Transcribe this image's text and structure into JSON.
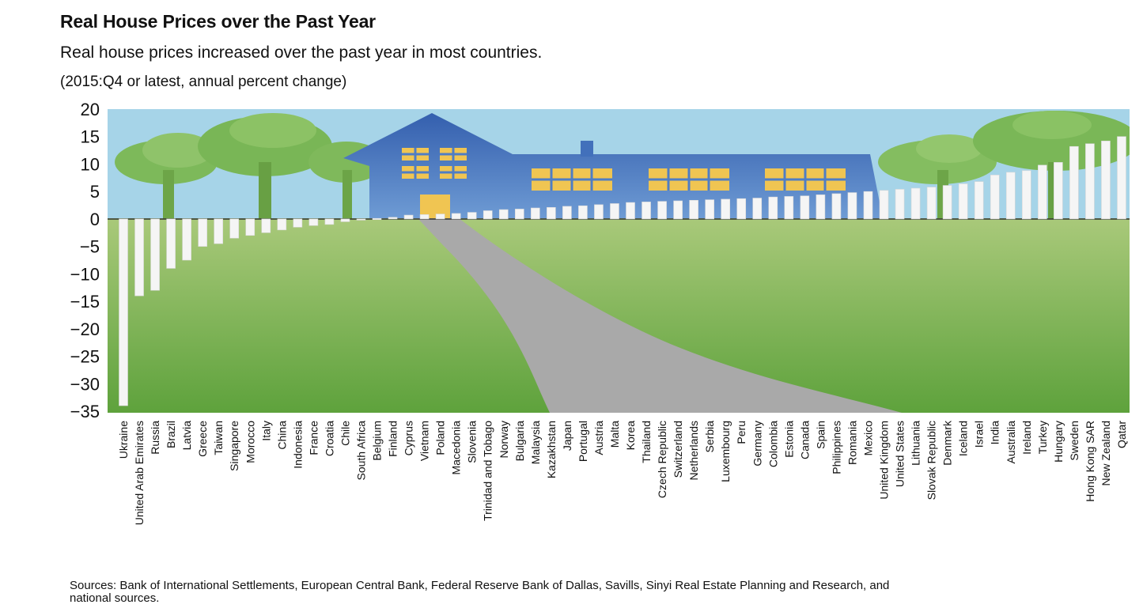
{
  "chart_data": {
    "type": "bar",
    "title": "Real House Prices over the Past Year",
    "subtitle": "Real house prices increased over the past year in most countries.",
    "unit_note": "(2015:Q4 or latest, annual percent change)",
    "ylim": [
      -35,
      20
    ],
    "yticks": [
      "20",
      "15",
      "10",
      "5",
      "0",
      "−5",
      "−10",
      "−15",
      "−20",
      "−25",
      "−30",
      "−35"
    ],
    "categories": [
      "Ukraine",
      "United Arab Emirates",
      "Russia",
      "Brazil",
      "Latvia",
      "Greece",
      "Taiwan",
      "Singapore",
      "Morocco",
      "Italy",
      "China",
      "Indonesia",
      "France",
      "Croatia",
      "Chile",
      "South Africa",
      "Belgium",
      "Finland",
      "Cyprus",
      "Vietnam",
      "Poland",
      "Macedonia",
      "Slovenia",
      "Trinidad and Tobago",
      "Norway",
      "Bulgaria",
      "Malaysia",
      "Kazakhstan",
      "Japan",
      "Portugal",
      "Austria",
      "Malta",
      "Korea",
      "Thailand",
      "Czech Republic",
      "Switzerland",
      "Netherlands",
      "Serbia",
      "Luxembourg",
      "Peru",
      "Germany",
      "Colombia",
      "Estonia",
      "Canada",
      "Spain",
      "Philippines",
      "Romania",
      "Mexico",
      "United Kingdom",
      "United States",
      "Lithuania",
      "Slovak Republic",
      "Denmark",
      "Iceland",
      "Israel",
      "India",
      "Australia",
      "Ireland",
      "Turkey",
      "Hungary",
      "Sweden",
      "Hong Kong SAR",
      "New Zealand",
      "Qatar"
    ],
    "values": [
      -34,
      -14,
      -13,
      -9,
      -7.5,
      -5,
      -4.5,
      -3.5,
      -3,
      -2.5,
      -2,
      -1.5,
      -1.2,
      -1,
      -0.5,
      -0.2,
      0.1,
      0.3,
      0.7,
      0.8,
      0.9,
      1,
      1.2,
      1.5,
      1.7,
      1.8,
      2,
      2.1,
      2.3,
      2.4,
      2.6,
      2.8,
      3,
      3.1,
      3.2,
      3.3,
      3.4,
      3.5,
      3.6,
      3.7,
      3.8,
      4,
      4.1,
      4.2,
      4.4,
      4.6,
      4.8,
      5,
      5.2,
      5.4,
      5.6,
      5.8,
      6.1,
      6.4,
      6.8,
      8,
      8.5,
      8.8,
      9.8,
      10.3,
      13.2,
      13.7,
      14.2,
      15
    ],
    "grid": false,
    "legend": "none",
    "colors": {
      "sky": "#a6d4e8",
      "grass_light": "#a4c574",
      "grass_dark": "#6ea845",
      "house": "#4f7dc4",
      "window": "#f0c552",
      "road": "#a9a9a9",
      "tree": "#8fc06a",
      "bar": "#f5f5f5"
    }
  },
  "sources": {
    "line1": "Sources: Bank of International Settlements, European Central Bank, Federal Reserve Bank of Dallas, Savills, Sinyi Real Estate Planning and Research, and",
    "line2": "national sources."
  }
}
